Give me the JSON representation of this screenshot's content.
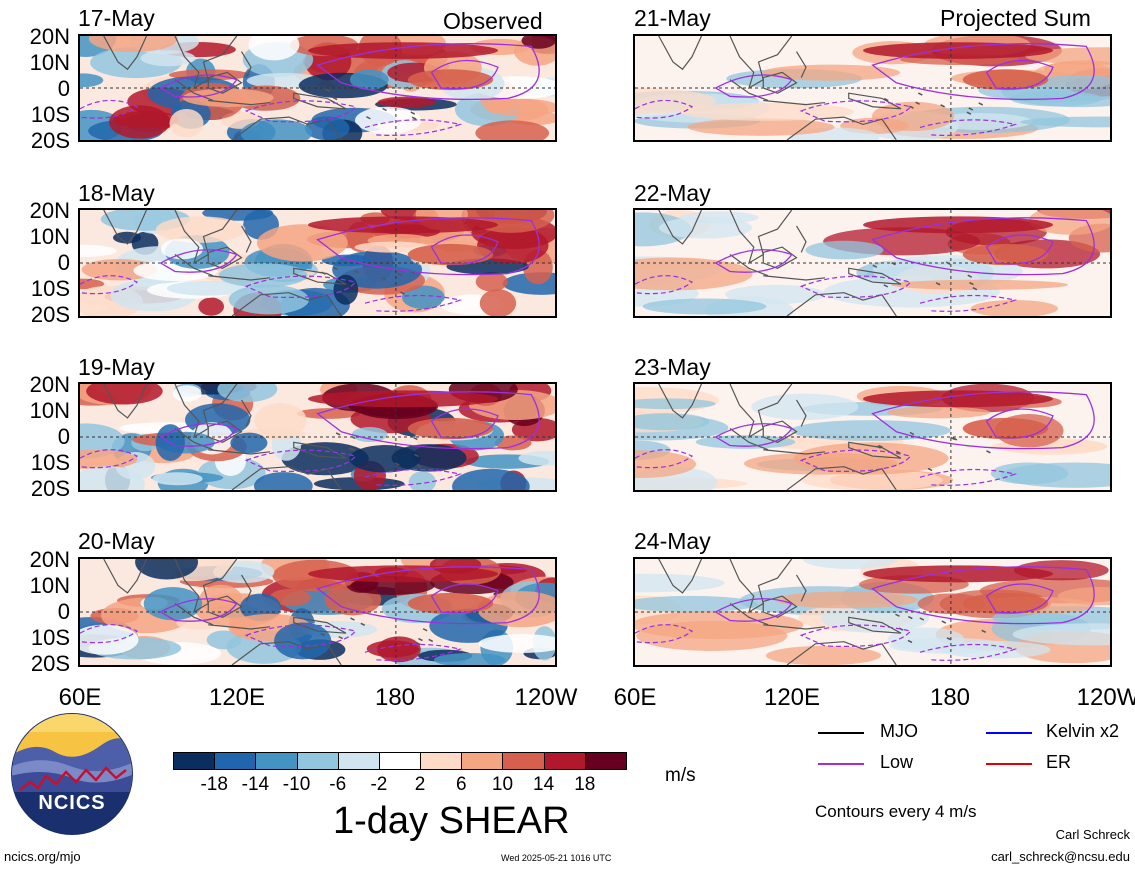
{
  "header": {
    "left_title": "Observed",
    "right_title": "Projected Sum"
  },
  "panels_left": [
    {
      "date": "17-May"
    },
    {
      "date": "18-May"
    },
    {
      "date": "19-May"
    },
    {
      "date": "20-May"
    }
  ],
  "panels_right": [
    {
      "date": "21-May"
    },
    {
      "date": "22-May"
    },
    {
      "date": "23-May"
    },
    {
      "date": "24-May"
    }
  ],
  "lat_labels": [
    "20N",
    "10N",
    "0",
    "10S",
    "20S"
  ],
  "lon_labels": [
    "60E",
    "120E",
    "180",
    "120W"
  ],
  "colorbar": {
    "ticks": [
      "-18",
      "-14",
      "-10",
      "-6",
      "-2",
      "2",
      "6",
      "10",
      "14",
      "18"
    ],
    "colors": [
      "#0b2e5e",
      "#2166ac",
      "#4393c3",
      "#92c5de",
      "#d1e5f0",
      "#ffffff",
      "#fddbc7",
      "#f4a582",
      "#d6604d",
      "#b2182b",
      "#67001f"
    ],
    "units": "m/s",
    "title": "1-day SHEAR"
  },
  "legend": {
    "items": [
      {
        "label": "MJO",
        "color": "#000000"
      },
      {
        "label": "Kelvin x2",
        "color": "#0000ff"
      },
      {
        "label": "Low",
        "color": "#9b30e0"
      },
      {
        "label": "ER",
        "color": "#e00000"
      }
    ],
    "note": "Contours every 4 m/s"
  },
  "footer": {
    "logo_text": "NCICS",
    "url": "ncics.org/mjo",
    "timestamp": "Wed 2025-05-21 1016 UTC",
    "author": "Carl Schreck",
    "email": "carl_schreck@ncsu.edu"
  }
}
